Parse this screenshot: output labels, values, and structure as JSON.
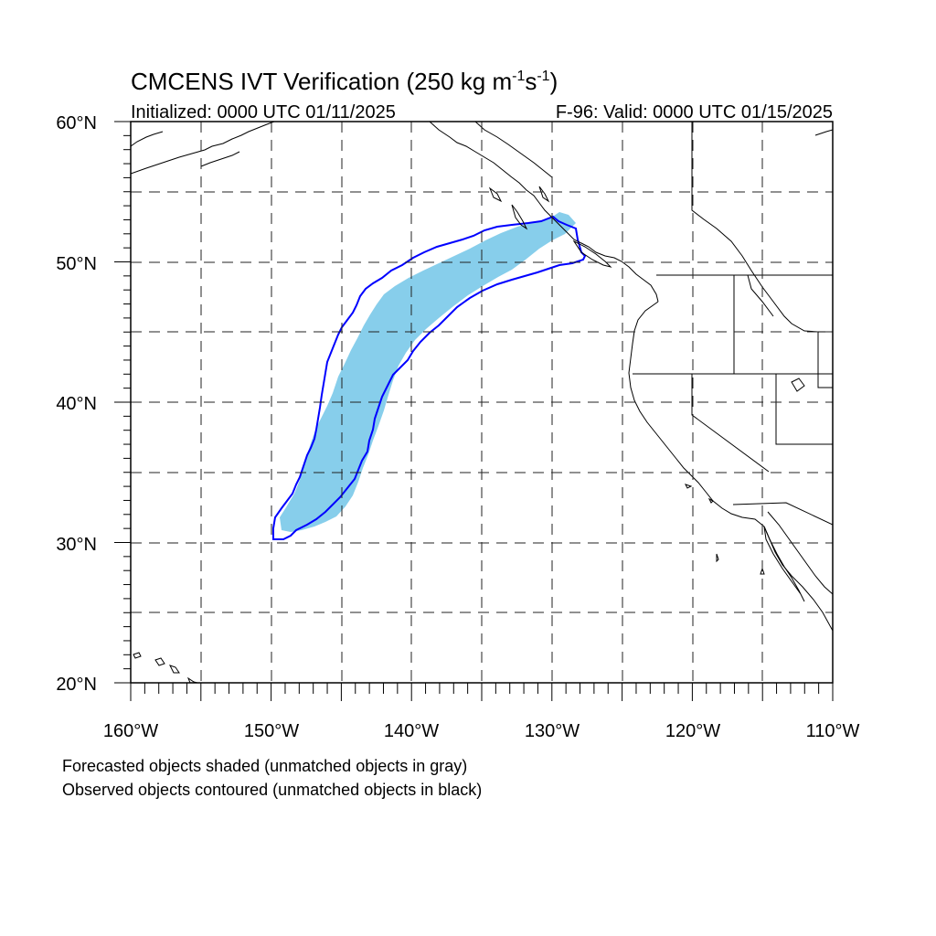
{
  "title": {
    "main": "CMCENS IVT Verification (250 kg m",
    "sup1": "-1",
    "mid": "s",
    "sup2": "-1",
    "close": ")",
    "initialized": "Initialized: 0000 UTC 01/11/2025",
    "valid": "F-96: Valid: 0000 UTC 01/15/2025"
  },
  "map": {
    "lon_range": [
      -160,
      -110
    ],
    "lat_range": [
      20,
      60
    ],
    "grid_lines": "dashed",
    "lat_labels": [
      "20°N",
      "30°N",
      "40°N",
      "50°N",
      "60°N"
    ],
    "lon_labels": [
      "160°W",
      "150°W",
      "140°W",
      "130°W",
      "120°W",
      "110°W"
    ],
    "forecast_fill_color": "#87ceeb",
    "observed_contour_color": "#0000ff",
    "coastline_color": "#000000",
    "forecast_object_region": "atmospheric river from ~31°N 149°W to ~53°N 129°W",
    "observed_object_region": "atmospheric river from ~30°N 150°W to ~53°N 128°W"
  },
  "captions": {
    "line1": "Forecasted objects shaded (unmatched objects in gray)",
    "line2": "Observed objects contoured (unmatched objects in black)"
  }
}
